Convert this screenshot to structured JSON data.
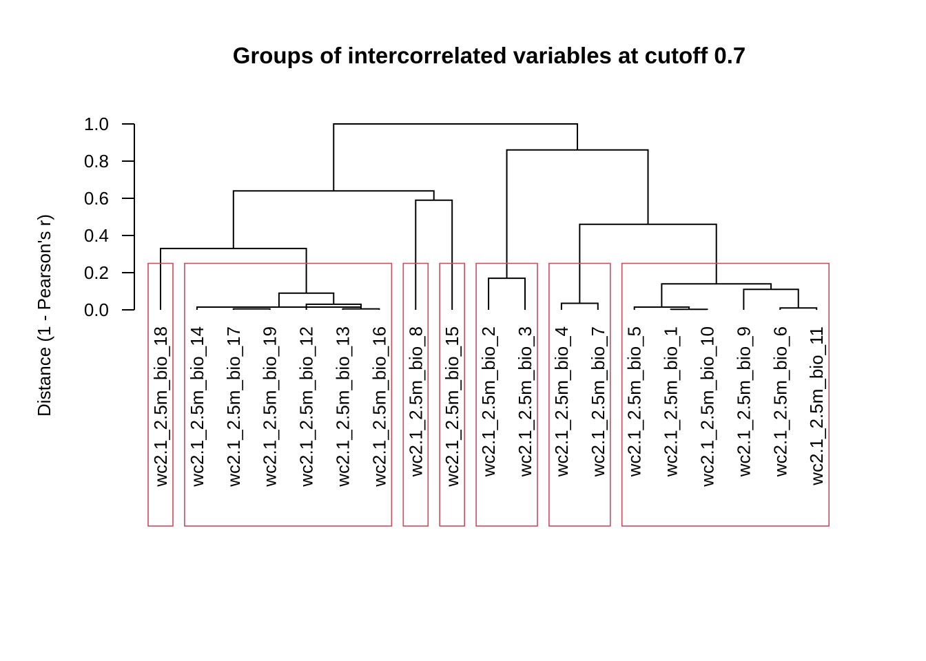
{
  "chart_data": {
    "type": "dendrogram",
    "title": "Groups of intercorrelated variables at cutoff 0.7",
    "ylabel": "Distance (1 - Pearson's r)",
    "ylim": [
      0,
      1.0
    ],
    "yticks": [
      "0.0",
      "0.2",
      "0.4",
      "0.6",
      "0.8",
      "1.0"
    ],
    "leaves": [
      "wc2.1_2.5m_bio_18",
      "wc2.1_2.5m_bio_14",
      "wc2.1_2.5m_bio_17",
      "wc2.1_2.5m_bio_19",
      "wc2.1_2.5m_bio_12",
      "wc2.1_2.5m_bio_13",
      "wc2.1_2.5m_bio_16",
      "wc2.1_2.5m_bio_8",
      "wc2.1_2.5m_bio_15",
      "wc2.1_2.5m_bio_2",
      "wc2.1_2.5m_bio_3",
      "wc2.1_2.5m_bio_4",
      "wc2.1_2.5m_bio_7",
      "wc2.1_2.5m_bio_5",
      "wc2.1_2.5m_bio_1",
      "wc2.1_2.5m_bio_10",
      "wc2.1_2.5m_bio_9",
      "wc2.1_2.5m_bio_6",
      "wc2.1_2.5m_bio_11"
    ],
    "merges": [
      {
        "a": "L14",
        "b": "L15",
        "height": 0.003
      },
      {
        "a": "L2",
        "b": "L3",
        "height": 0.005
      },
      {
        "a": "L5",
        "b": "L6",
        "height": 0.005
      },
      {
        "a": "L17",
        "b": "L18",
        "height": 0.01
      },
      {
        "a": "L1",
        "b": "M2",
        "height": 0.015
      },
      {
        "a": "L13",
        "b": "M0",
        "height": 0.015
      },
      {
        "a": "L4",
        "b": "M2",
        "height": 0.03
      },
      {
        "a": "L11",
        "b": "L12",
        "height": 0.035
      },
      {
        "a": "M4",
        "b": "M6",
        "height": 0.09
      },
      {
        "a": "L16",
        "b": "M3",
        "height": 0.11
      },
      {
        "a": "M5",
        "b": "M9",
        "height": 0.14
      },
      {
        "a": "L9",
        "b": "L10",
        "height": 0.17
      },
      {
        "a": "L0",
        "b": "M8",
        "height": 0.33
      },
      {
        "a": "M7",
        "b": "M10",
        "height": 0.46
      },
      {
        "a": "L7",
        "b": "L8",
        "height": 0.59
      },
      {
        "a": "M12",
        "b": "M14",
        "height": 0.64
      },
      {
        "a": "M11",
        "b": "M13",
        "height": 0.86
      },
      {
        "a": "M15",
        "b": "M16",
        "height": 1.0
      }
    ],
    "cutoff": 0.7,
    "groups": [
      [
        "wc2.1_2.5m_bio_18"
      ],
      [
        "wc2.1_2.5m_bio_14",
        "wc2.1_2.5m_bio_17",
        "wc2.1_2.5m_bio_19",
        "wc2.1_2.5m_bio_12",
        "wc2.1_2.5m_bio_13",
        "wc2.1_2.5m_bio_16"
      ],
      [
        "wc2.1_2.5m_bio_8"
      ],
      [
        "wc2.1_2.5m_bio_15"
      ],
      [
        "wc2.1_2.5m_bio_2",
        "wc2.1_2.5m_bio_3"
      ],
      [
        "wc2.1_2.5m_bio_4",
        "wc2.1_2.5m_bio_7"
      ],
      [
        "wc2.1_2.5m_bio_5",
        "wc2.1_2.5m_bio_1",
        "wc2.1_2.5m_bio_10",
        "wc2.1_2.5m_bio_9",
        "wc2.1_2.5m_bio_6",
        "wc2.1_2.5m_bio_11"
      ]
    ],
    "group_box_top": 0.25,
    "colors": {
      "branches": "#000000",
      "group_boxes": "#d1495b"
    }
  }
}
